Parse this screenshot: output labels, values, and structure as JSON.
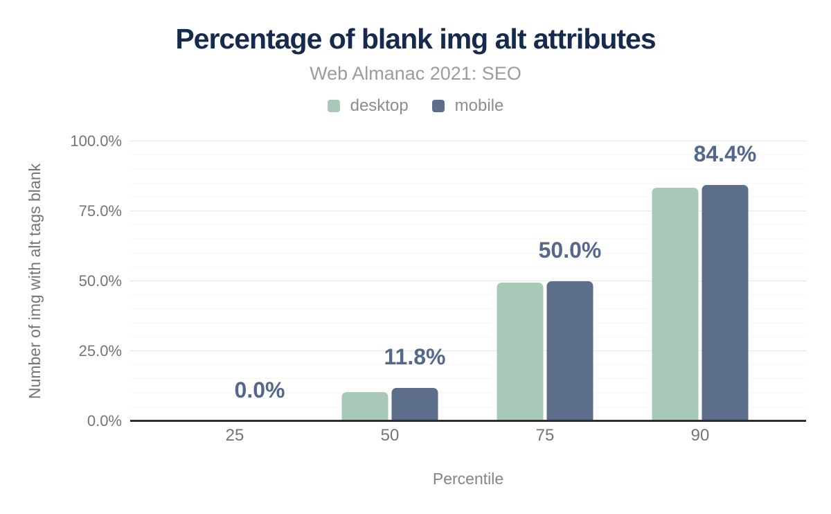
{
  "chart": {
    "title": "Percentage of blank img alt attributes",
    "subtitle": "Web Almanac 2021: SEO"
  },
  "chart_data": {
    "type": "bar",
    "title": "Percentage of blank img alt attributes",
    "subtitle": "Web Almanac 2021: SEO",
    "categories": [
      "25",
      "50",
      "75",
      "90"
    ],
    "series": [
      {
        "key": "desktop",
        "name": "desktop",
        "color": "#a8c9b8",
        "values": [
          0.0,
          10.4,
          49.6,
          83.4
        ]
      },
      {
        "key": "mobile",
        "name": "mobile",
        "color": "#5d6e8a",
        "values": [
          0.0,
          11.8,
          50.0,
          84.4
        ]
      }
    ],
    "bar_labels": [
      "0.0%",
      "11.8%",
      "50.0%",
      "84.4%"
    ],
    "labeled_series": "mobile",
    "xlabel": "Percentile",
    "ylabel": "Number of img with alt tags blank",
    "ylim": [
      0,
      100
    ],
    "yticks": [
      {
        "value": 0,
        "label": "0.0%"
      },
      {
        "value": 25,
        "label": "25.0%"
      },
      {
        "value": 50,
        "label": "50.0%"
      },
      {
        "value": 75,
        "label": "75.0%"
      },
      {
        "value": 100,
        "label": "100.0%"
      }
    ],
    "grid": {
      "minor_step": 5,
      "major_step": 25
    },
    "legend_position": "top"
  },
  "colors": {
    "title": "#152a4c",
    "subtitle": "#9c9c9c",
    "legend_text": "#8c8c8c",
    "tick_text": "#757575",
    "data_label": "#54688c",
    "axis_line": "#2e2e2e",
    "desktop_bar": "#a8c9b8",
    "mobile_bar": "#5d6e8a"
  }
}
